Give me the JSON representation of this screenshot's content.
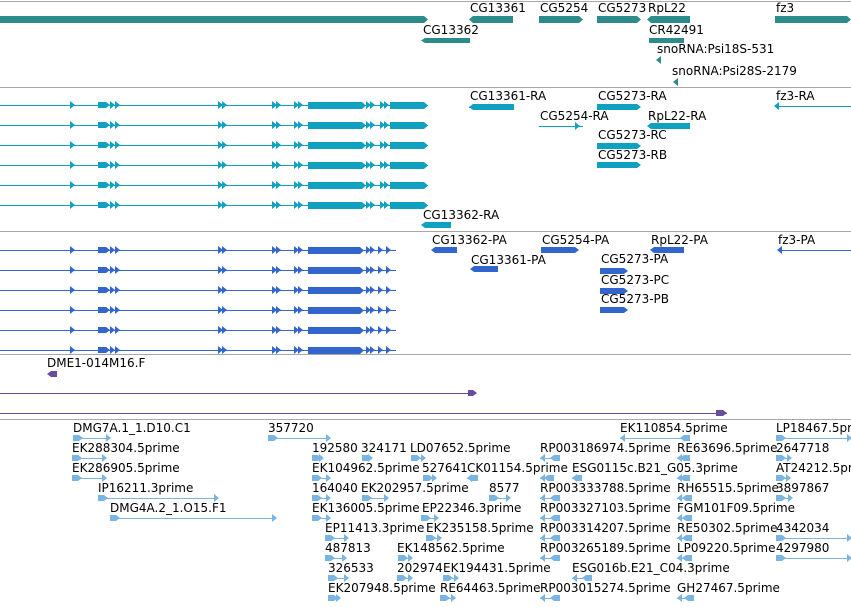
{
  "colors": {
    "gene": "#2e8b8b",
    "transcript": "#10a0c0",
    "protein": "#3366cc",
    "clone": "#6a4c9c",
    "est": "#7ab4e0",
    "separator": "#a8a8a8"
  },
  "tracks": {
    "genes": {
      "labels": [
        "CG13361",
        "CG5254",
        "CG5273",
        "RpL22",
        "fz3",
        "CG13362",
        "CR42491",
        "snoRNA:Psi18S-531",
        "snoRNA:Psi28S-2179"
      ]
    },
    "transcripts": {
      "labels": [
        "CG13361-RA",
        "CG5273-RA",
        "fz3-RA",
        "CG5254-RA",
        "RpL22-RA",
        "CG5273-RC",
        "CG5273-RB",
        "CG13362-RA"
      ]
    },
    "proteins": {
      "labels": [
        "CG13362-PA",
        "CG5254-PA",
        "RpL22-PA",
        "fz3-PA",
        "CG13361-PA",
        "CG5273-PA",
        "CG5273-PC",
        "CG5273-PB"
      ]
    },
    "clones": {
      "labels": [
        "DME1-014M16.F"
      ]
    },
    "ests": {
      "labels": [
        "DMG7A.1_1.D10.C1",
        "357720",
        "EK110854.5prime",
        "LP18467.5prime",
        "EK288304.5prime",
        "192580",
        "324171",
        "LD07652.5prime",
        "RP003186974.5prime",
        "RE63696.5prime",
        "2647718",
        "EK286905.5prime",
        "EK104962.5prime",
        "527641",
        "CK01154.5prime",
        "ESG0115c.B21_G05.3prime",
        "AT24212.5prime",
        "IP16211.3prime",
        "164040",
        "EK202957.5prime",
        "8577",
        "RP003333788.5prime",
        "RH65515.5prime",
        "3897867",
        "DMG4A.2_1.O15.F1",
        "EK136005.5prime",
        "EP22346.3prime",
        "RP003327103.5prime",
        "FGM101F09.5prime",
        "EP11413.3prime",
        "EK235158.5prime",
        "RP003314207.5prime",
        "RE50302.5prime",
        "4342034",
        "487813",
        "EK148562.5prime",
        "RP003265189.5prime",
        "LP09220.5prime",
        "4297980",
        "326533",
        "202974",
        "EK194431.5prime",
        "ESG016b.E21_C04.3prime",
        "EK207948.5prime",
        "RE64463.5prime",
        "RP003015274.5prime",
        "GH27467.5prime"
      ]
    }
  }
}
